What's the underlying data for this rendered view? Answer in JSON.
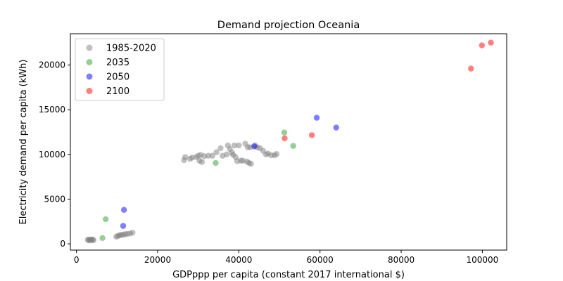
{
  "chart_data": {
    "type": "scatter",
    "title": "Demand projection Oceania",
    "xlabel": "GDPppp per capita (constant 2017 international $)",
    "ylabel": "Electricity demand per capita (kWh)",
    "xlim": [
      -1500,
      106000
    ],
    "ylim": [
      -700,
      23500
    ],
    "xticks": [
      0,
      20000,
      40000,
      60000,
      80000,
      100000
    ],
    "xtick_labels": [
      "0",
      "20000",
      "40000",
      "60000",
      "80000",
      "100000"
    ],
    "yticks": [
      0,
      5000,
      10000,
      15000,
      20000
    ],
    "ytick_labels": [
      "0",
      "5000",
      "10000",
      "15000",
      "20000"
    ],
    "grid": false,
    "legend_position": "top-left",
    "series": [
      {
        "name": "1985-2020",
        "color": "#808080",
        "points": [
          [
            2800,
            450
          ],
          [
            3000,
            420
          ],
          [
            3200,
            470
          ],
          [
            3500,
            380
          ],
          [
            3700,
            500
          ],
          [
            4000,
            440
          ],
          [
            4200,
            420
          ],
          [
            9800,
            800
          ],
          [
            10200,
            880
          ],
          [
            10600,
            950
          ],
          [
            11000,
            1000
          ],
          [
            11500,
            1020
          ],
          [
            12000,
            1080
          ],
          [
            12500,
            1100
          ],
          [
            13200,
            1150
          ],
          [
            13800,
            1250
          ],
          [
            26500,
            9350
          ],
          [
            26800,
            9700
          ],
          [
            28000,
            9500
          ],
          [
            28500,
            9650
          ],
          [
            29500,
            9700
          ],
          [
            30000,
            9850
          ],
          [
            30300,
            9300
          ],
          [
            30600,
            9950
          ],
          [
            30900,
            9150
          ],
          [
            31500,
            9800
          ],
          [
            32500,
            9850
          ],
          [
            33500,
            9850
          ],
          [
            34500,
            10250
          ],
          [
            35500,
            10700
          ],
          [
            36000,
            9850
          ],
          [
            37000,
            10000
          ],
          [
            37300,
            11000
          ],
          [
            37800,
            10600
          ],
          [
            38300,
            10200
          ],
          [
            38600,
            9950
          ],
          [
            38900,
            11000
          ],
          [
            39200,
            9700
          ],
          [
            39600,
            9250
          ],
          [
            40000,
            11000
          ],
          [
            40500,
            9300
          ],
          [
            41000,
            9300
          ],
          [
            41600,
            11200
          ],
          [
            42000,
            9200
          ],
          [
            42200,
            10800
          ],
          [
            42500,
            9050
          ],
          [
            42800,
            10800
          ],
          [
            43000,
            8950
          ],
          [
            44000,
            11000
          ],
          [
            44500,
            10800
          ],
          [
            45200,
            10700
          ],
          [
            46000,
            10400
          ],
          [
            46700,
            10000
          ],
          [
            47200,
            10100
          ],
          [
            48000,
            9900
          ],
          [
            48800,
            9900
          ],
          [
            49300,
            10050
          ]
        ]
      },
      {
        "name": "2035",
        "color": "#2ca02c",
        "points": [
          [
            6400,
            650
          ],
          [
            7200,
            2750
          ],
          [
            34300,
            9050
          ],
          [
            51200,
            12450
          ],
          [
            53400,
            10950
          ]
        ]
      },
      {
        "name": "2050",
        "color": "#0000ff",
        "points": [
          [
            11500,
            2000
          ],
          [
            11700,
            3800
          ],
          [
            43800,
            10900
          ],
          [
            59200,
            14100
          ],
          [
            64000,
            13000
          ]
        ]
      },
      {
        "name": "2100",
        "color": "#ff0000",
        "points": [
          [
            51300,
            11800
          ],
          [
            58000,
            12150
          ],
          [
            97200,
            19600
          ],
          [
            99900,
            22200
          ],
          [
            102100,
            22500
          ]
        ]
      }
    ]
  }
}
